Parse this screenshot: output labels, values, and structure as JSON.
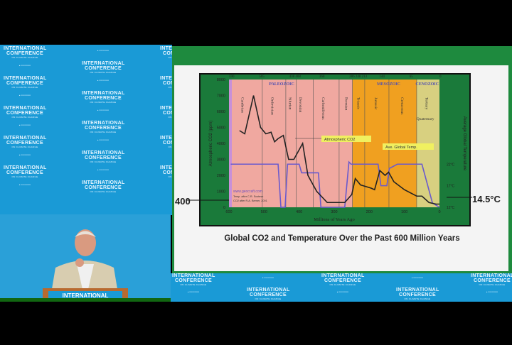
{
  "backdrop": {
    "logo_line1": "INTERNATIONAL",
    "logo_line2": "CONFERENCE",
    "logo_line3": "ON CLIMATE CHANGE"
  },
  "podium": {
    "label": "INTERNATIONAL"
  },
  "slide": {
    "caption": "Global CO2 and Temperature Over the Past 600 Million Years",
    "left_marker": "400",
    "right_marker": "14.5°C"
  },
  "chart_data": {
    "type": "line",
    "xlabel": "Millions of Years Ago",
    "ylabel": "Atmospheric CO2 (ppm)",
    "y2label": "Average Global Temperature",
    "xlim": [
      600,
      0
    ],
    "ylim": [
      0,
      8000
    ],
    "x_ticks": [
      "600",
      "500",
      "400",
      "300",
      "200",
      "100",
      "0"
    ],
    "y_ticks": [
      "0",
      "1000",
      "2000",
      "3000",
      "4000",
      "5000",
      "6000",
      "7000",
      "8000"
    ],
    "y2_ticks": [
      "12°C",
      "17°C",
      "22°C"
    ],
    "top_ticks": [
      "590",
      "505",
      "438 408",
      "360",
      "286 248 213",
      "144",
      "65",
      "0"
    ],
    "eras": [
      "PALEOZOIC",
      "MESOZOIC",
      "CENOZOIC"
    ],
    "periods": [
      "Cambrian",
      "Ordovician",
      "Silurian",
      "Devonian",
      "Carboniferous",
      "Permian",
      "Triassic",
      "Jurassic",
      "Cretaceous",
      "Tertiary",
      "Quaternary"
    ],
    "annotations": [
      "Atmospheric CO2",
      "Ave. Global Temp.",
      "www.geocraft.com",
      "Temp. after C.R. Scotese",
      "CO2 after R.A. Berner, 2001"
    ],
    "colors": {
      "paleozoic": "#f0a8a0",
      "mesozoic": "#f0a020",
      "cenozoic": "#d8d080",
      "co2": "#222222",
      "temp": "#6a5acd"
    },
    "series": [
      {
        "name": "Atmospheric CO2",
        "x": [
          570,
          555,
          530,
          510,
          495,
          480,
          470,
          460,
          445,
          430,
          415,
          390,
          375,
          350,
          320,
          300,
          270,
          250,
          240,
          225,
          210,
          195,
          185,
          170,
          155,
          145,
          130,
          100,
          65,
          50,
          30,
          10,
          0
        ],
        "values": [
          4800,
          4600,
          7000,
          5000,
          4600,
          4700,
          4100,
          4300,
          4500,
          3000,
          3000,
          4000,
          2000,
          1000,
          300,
          300,
          300,
          800,
          1800,
          1400,
          1300,
          1200,
          1100,
          2300,
          2000,
          2200,
          1600,
          1100,
          700,
          700,
          300,
          200,
          200
        ]
      },
      {
        "name": "Ave. Global Temp.",
        "x": [
          595,
          460,
          452,
          440,
          433,
          400,
          393,
          380,
          345,
          338,
          300,
          270,
          258,
          252,
          230,
          175,
          167,
          150,
          143,
          120,
          50,
          20,
          0
        ],
        "values": [
          22,
          22,
          12,
          12,
          22,
          22,
          20,
          20,
          20,
          12,
          12,
          12,
          22.5,
          22,
          22,
          22,
          17,
          17,
          21,
          22,
          22,
          13,
          12
        ]
      }
    ]
  }
}
